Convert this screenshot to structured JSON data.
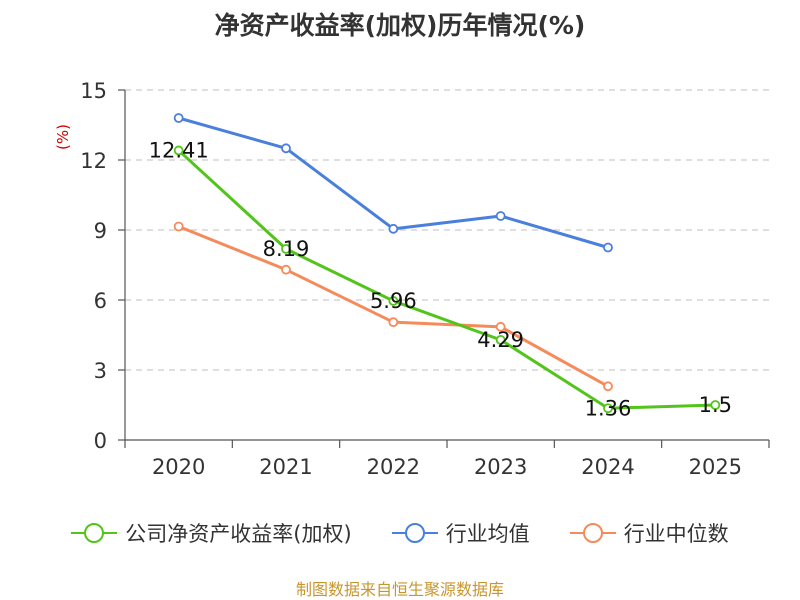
{
  "chart_data": {
    "type": "line",
    "title": "净资产收益率(加权)历年情况(%)",
    "ylabel": "(%)",
    "xlabel": "",
    "categories": [
      "2020",
      "2021",
      "2022",
      "2023",
      "2024",
      "2025"
    ],
    "ylim": [
      0,
      15
    ],
    "yticks": [
      0,
      3,
      6,
      9,
      12,
      15
    ],
    "grid": true,
    "legend_position": "bottom",
    "series": [
      {
        "name": "公司净资产收益率(加权)",
        "color": "#52c41a",
        "values": [
          12.41,
          8.19,
          5.96,
          4.29,
          1.36,
          1.5
        ],
        "labels": [
          "12.41",
          "8.19",
          "5.96",
          "4.29",
          "1.36",
          "1.5"
        ]
      },
      {
        "name": "行业均值",
        "color": "#4a7fdc",
        "values": [
          13.8,
          12.5,
          9.05,
          9.6,
          8.25,
          null
        ]
      },
      {
        "name": "行业中位数",
        "color": "#f58a5a",
        "values": [
          9.15,
          7.3,
          5.05,
          4.85,
          2.3,
          null
        ]
      }
    ]
  },
  "footer": {
    "source": "制图数据来自恒生聚源数据库"
  }
}
